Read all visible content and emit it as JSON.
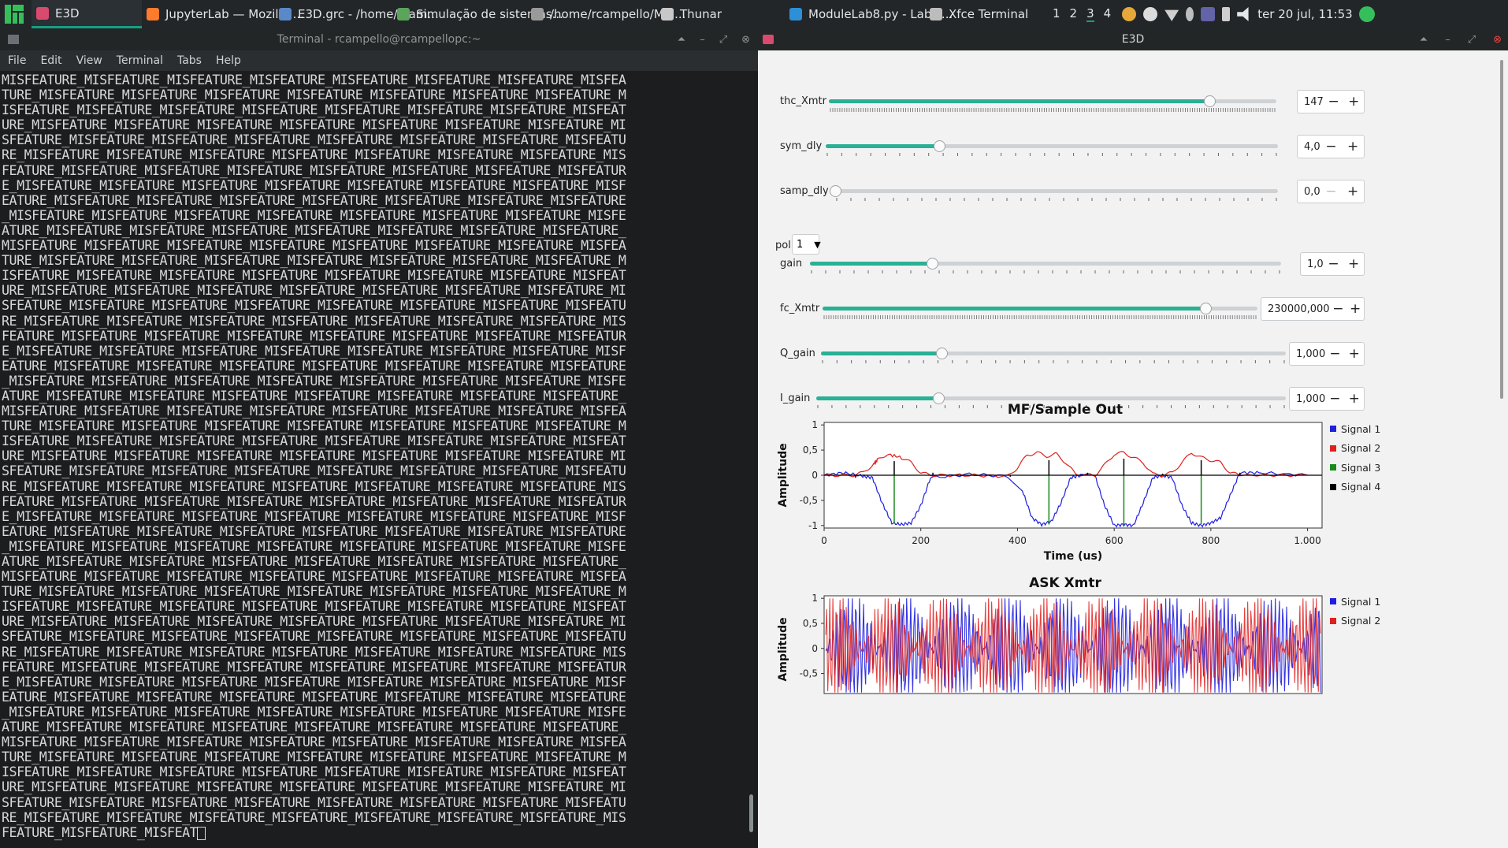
{
  "panel": {
    "tasks": [
      {
        "label": "E3D",
        "color": "#d94b6e",
        "active": true,
        "width": 140
      },
      {
        "label": "JupyterLab — Mozilla ...",
        "color": "#ff7a2b",
        "active": false,
        "width": 168
      },
      {
        "label": "E3D.grc - /home/rcam...",
        "color": "#5a88c9",
        "active": false,
        "width": 150
      },
      {
        "label": "Simulação de sistemas...",
        "color": "#5aa55a",
        "active": false,
        "width": 170
      },
      {
        "label": "/home/rcampello/Mai...",
        "color": "#9a9a9a",
        "active": false,
        "width": 165
      },
      {
        "label": "Thunar",
        "color": "#c8c8c8",
        "active": false,
        "width": 163
      },
      {
        "label": "ModuleLab8.py - Labs ...",
        "color": "#2d8fd6",
        "active": false,
        "width": 178
      },
      {
        "label": "Xfce Terminal",
        "color": "#bcbcbc",
        "active": false,
        "width": 150
      }
    ],
    "workspaces": [
      "1",
      "2",
      "3",
      "4"
    ],
    "current_workspace": "3",
    "clock": "ter 20 jul, 11:53"
  },
  "terminal": {
    "title": "Terminal - rcampello@rcampellopc:~",
    "menu": [
      "File",
      "Edit",
      "View",
      "Terminal",
      "Tabs",
      "Help"
    ],
    "lines": [
      "MISFEATURE_MISFEATURE_MISFEATURE_MISFEATURE_MISFEATURE_MISFEATURE_MISFEATURE_MISFEA",
      "TURE_MISFEATURE_MISFEATURE_MISFEATURE_MISFEATURE_MISFEATURE_MISFEATURE_MISFEATURE_M",
      "ISFEATURE_MISFEATURE_MISFEATURE_MISFEATURE_MISFEATURE_MISFEATURE_MISFEATURE_MISFEAT",
      "URE_MISFEATURE_MISFEATURE_MISFEATURE_MISFEATURE_MISFEATURE_MISFEATURE_MISFEATURE_MI",
      "SFEATURE_MISFEATURE_MISFEATURE_MISFEATURE_MISFEATURE_MISFEATURE_MISFEATURE_MISFEATU",
      "RE_MISFEATURE_MISFEATURE_MISFEATURE_MISFEATURE_MISFEATURE_MISFEATURE_MISFEATURE_MIS",
      "FEATURE_MISFEATURE_MISFEATURE_MISFEATURE_MISFEATURE_MISFEATURE_MISFEATURE_MISFEATUR",
      "E_MISFEATURE_MISFEATURE_MISFEATURE_MISFEATURE_MISFEATURE_MISFEATURE_MISFEATURE_MISF",
      "EATURE_MISFEATURE_MISFEATURE_MISFEATURE_MISFEATURE_MISFEATURE_MISFEATURE_MISFEATURE",
      "_MISFEATURE_MISFEATURE_MISFEATURE_MISFEATURE_MISFEATURE_MISFEATURE_MISFEATURE_MISFE",
      "ATURE_MISFEATURE_MISFEATURE_MISFEATURE_MISFEATURE_MISFEATURE_MISFEATURE_MISFEATURE_",
      "MISFEATURE_MISFEATURE_MISFEATURE_MISFEATURE_MISFEATURE_MISFEATURE_MISFEATURE_MISFEA",
      "TURE_MISFEATURE_MISFEATURE_MISFEATURE_MISFEATURE_MISFEATURE_MISFEATURE_MISFEATURE_M",
      "ISFEATURE_MISFEATURE_MISFEATURE_MISFEATURE_MISFEATURE_MISFEATURE_MISFEATURE_MISFEAT",
      "URE_MISFEATURE_MISFEATURE_MISFEATURE_MISFEATURE_MISFEATURE_MISFEATURE_MISFEATURE_MI",
      "SFEATURE_MISFEATURE_MISFEATURE_MISFEATURE_MISFEATURE_MISFEATURE_MISFEATURE_MISFEATU",
      "RE_MISFEATURE_MISFEATURE_MISFEATURE_MISFEATURE_MISFEATURE_MISFEATURE_MISFEATURE_MIS",
      "FEATURE_MISFEATURE_MISFEATURE_MISFEATURE_MISFEATURE_MISFEATURE_MISFEATURE_MISFEATUR",
      "E_MISFEATURE_MISFEATURE_MISFEATURE_MISFEATURE_MISFEATURE_MISFEATURE_MISFEATURE_MISF",
      "EATURE_MISFEATURE_MISFEATURE_MISFEATURE_MISFEATURE_MISFEATURE_MISFEATURE_MISFEATURE",
      "_MISFEATURE_MISFEATURE_MISFEATURE_MISFEATURE_MISFEATURE_MISFEATURE_MISFEATURE_MISFE",
      "ATURE_MISFEATURE_MISFEATURE_MISFEATURE_MISFEATURE_MISFEATURE_MISFEATURE_MISFEATURE_",
      "MISFEATURE_MISFEATURE_MISFEATURE_MISFEATURE_MISFEATURE_MISFEATURE_MISFEATURE_MISFEA",
      "TURE_MISFEATURE_MISFEATURE_MISFEATURE_MISFEATURE_MISFEATURE_MISFEATURE_MISFEATURE_M",
      "ISFEATURE_MISFEATURE_MISFEATURE_MISFEATURE_MISFEATURE_MISFEATURE_MISFEATURE_MISFEAT",
      "URE_MISFEATURE_MISFEATURE_MISFEATURE_MISFEATURE_MISFEATURE_MISFEATURE_MISFEATURE_MI",
      "SFEATURE_MISFEATURE_MISFEATURE_MISFEATURE_MISFEATURE_MISFEATURE_MISFEATURE_MISFEATU",
      "RE_MISFEATURE_MISFEATURE_MISFEATURE_MISFEATURE_MISFEATURE_MISFEATURE_MISFEATURE_MIS",
      "FEATURE_MISFEATURE_MISFEATURE_MISFEATURE_MISFEATURE_MISFEATURE_MISFEATURE_MISFEATUR",
      "E_MISFEATURE_MISFEATURE_MISFEATURE_MISFEATURE_MISFEATURE_MISFEATURE_MISFEATURE_MISF",
      "EATURE_MISFEATURE_MISFEATURE_MISFEATURE_MISFEATURE_MISFEATURE_MISFEATURE_MISFEATURE",
      "_MISFEATURE_MISFEATURE_MISFEATURE_MISFEATURE_MISFEATURE_MISFEATURE_MISFEATURE_MISFE",
      "ATURE_MISFEATURE_MISFEATURE_MISFEATURE_MISFEATURE_MISFEATURE_MISFEATURE_MISFEATURE_",
      "MISFEATURE_MISFEATURE_MISFEATURE_MISFEATURE_MISFEATURE_MISFEATURE_MISFEATURE_MISFEA",
      "TURE_MISFEATURE_MISFEATURE_MISFEATURE_MISFEATURE_MISFEATURE_MISFEATURE_MISFEATURE_M",
      "ISFEATURE_MISFEATURE_MISFEATURE_MISFEATURE_MISFEATURE_MISFEATURE_MISFEATURE_MISFEAT",
      "URE_MISFEATURE_MISFEATURE_MISFEATURE_MISFEATURE_MISFEATURE_MISFEATURE_MISFEATURE_MI",
      "SFEATURE_MISFEATURE_MISFEATURE_MISFEATURE_MISFEATURE_MISFEATURE_MISFEATURE_MISFEATU",
      "RE_MISFEATURE_MISFEATURE_MISFEATURE_MISFEATURE_MISFEATURE_MISFEATURE_MISFEATURE_MIS",
      "FEATURE_MISFEATURE_MISFEATURE_MISFEATURE_MISFEATURE_MISFEATURE_MISFEATURE_MISFEATUR",
      "E_MISFEATURE_MISFEATURE_MISFEATURE_MISFEATURE_MISFEATURE_MISFEATURE_MISFEATURE_MISF",
      "EATURE_MISFEATURE_MISFEATURE_MISFEATURE_MISFEATURE_MISFEATURE_MISFEATURE_MISFEATURE",
      "_MISFEATURE_MISFEATURE_MISFEATURE_MISFEATURE_MISFEATURE_MISFEATURE_MISFEATURE_MISFE",
      "ATURE_MISFEATURE_MISFEATURE_MISFEATURE_MISFEATURE_MISFEATURE_MISFEATURE_MISFEATURE_",
      "MISFEATURE_MISFEATURE_MISFEATURE_MISFEATURE_MISFEATURE_MISFEATURE_MISFEATURE_MISFEA",
      "TURE_MISFEATURE_MISFEATURE_MISFEATURE_MISFEATURE_MISFEATURE_MISFEATURE_MISFEATURE_M",
      "ISFEATURE_MISFEATURE_MISFEATURE_MISFEATURE_MISFEATURE_MISFEATURE_MISFEATURE_MISFEAT",
      "URE_MISFEATURE_MISFEATURE_MISFEATURE_MISFEATURE_MISFEATURE_MISFEATURE_MISFEATURE_MI",
      "SFEATURE_MISFEATURE_MISFEATURE_MISFEATURE_MISFEATURE_MISFEATURE_MISFEATURE_MISFEATU",
      "RE_MISFEATURE_MISFEATURE_MISFEATURE_MISFEATURE_MISFEATURE_MISFEATURE_MISFEATURE_MIS",
      "FEATURE_MISFEATURE_MISFEAT"
    ]
  },
  "e3d": {
    "title": "E3D",
    "controls": [
      {
        "id": "thc_Xmtr",
        "label": "thc_Xmtr",
        "value": "147",
        "level": 0.85,
        "dense_ticks": true,
        "minus_disabled": false
      },
      {
        "id": "sym_dly",
        "label": "sym_dly",
        "value": "4,0",
        "level": 0.25,
        "dense_ticks": false,
        "minus_disabled": false
      },
      {
        "id": "samp_dly",
        "label": "samp_dly",
        "value": "0,0",
        "level": 0.0,
        "dense_ticks": false,
        "minus_disabled": true
      },
      {
        "id": "gain",
        "label": "gain",
        "value": "1,0",
        "level": 0.26,
        "dense_ticks": false,
        "minus_disabled": false
      },
      {
        "id": "fc_Xmtr",
        "label": "fc_Xmtr",
        "value": "230000,000",
        "level": 0.88,
        "dense_ticks": true,
        "minus_disabled": false
      },
      {
        "id": "Q_gain",
        "label": "Q_gain",
        "value": "1,000",
        "level": 0.26,
        "dense_ticks": false,
        "minus_disabled": false
      },
      {
        "id": "I_gain",
        "label": "I_gain",
        "value": "1,000",
        "level": 0.26,
        "dense_ticks": false,
        "minus_disabled": false
      }
    ],
    "pol": {
      "label": "pol:",
      "value": "1"
    },
    "minus_label": "−",
    "plus_label": "+"
  },
  "chart_data": [
    {
      "type": "line",
      "title": "MF/Sample Out",
      "xlabel": "Time (us)",
      "ylabel": "Amplitude",
      "xlim": [
        0,
        1030
      ],
      "ylim": [
        -1.05,
        1.05
      ],
      "xticks": [
        0,
        200,
        400,
        600,
        800,
        1000
      ],
      "xtick_labels": [
        "0",
        "200",
        "400",
        "600",
        "800",
        "1.000"
      ],
      "yticks": [
        1,
        0.5,
        0,
        -0.5,
        -1
      ],
      "ytick_labels": [
        "1",
        "0,5",
        "0",
        "-0,5",
        "-1"
      ],
      "grid": false,
      "legend_position": "right",
      "series": [
        {
          "name": "Signal 1",
          "color": "#1f1fe0",
          "x": [
            0,
            40,
            80,
            100,
            120,
            140,
            160,
            180,
            200,
            220,
            300,
            380,
            410,
            430,
            450,
            470,
            490,
            510,
            530,
            560,
            580,
            600,
            620,
            640,
            660,
            680,
            700,
            720,
            740,
            760,
            780,
            800,
            820,
            840,
            860,
            900,
            1000
          ],
          "y": [
            0,
            0.05,
            -0.02,
            -0.05,
            -0.55,
            -0.95,
            -0.98,
            -0.95,
            -0.6,
            -0.05,
            0.02,
            -0.02,
            -0.3,
            -0.85,
            -0.98,
            -0.92,
            -0.55,
            -0.05,
            0,
            0,
            -0.6,
            -1.0,
            -0.98,
            -1.0,
            -0.55,
            -0.05,
            0,
            -0.05,
            -0.6,
            -0.95,
            -1.0,
            -0.95,
            -0.85,
            -0.4,
            0.05,
            0.05,
            0
          ]
        },
        {
          "name": "Signal 2",
          "color": "#e01f1f",
          "x": [
            0,
            60,
            80,
            100,
            110,
            130,
            160,
            180,
            200,
            220,
            300,
            380,
            400,
            420,
            440,
            460,
            480,
            500,
            520,
            560,
            580,
            600,
            620,
            640,
            660,
            680,
            700,
            720,
            740,
            760,
            780,
            800,
            820,
            840,
            860,
            1000
          ],
          "y": [
            0,
            0,
            0.05,
            0.2,
            0.3,
            0.42,
            0.35,
            0.25,
            0.05,
            0,
            0,
            -0.02,
            0.15,
            0.4,
            0.45,
            0.38,
            0.42,
            0.25,
            0.02,
            0,
            0.2,
            0.42,
            0.45,
            0.35,
            0.25,
            0.02,
            0,
            0.05,
            0.25,
            0.45,
            0.35,
            0.3,
            0.25,
            0.05,
            0,
            0
          ]
        },
        {
          "name": "Signal 3",
          "color": "#1a8a1a",
          "stems_x": [
            145,
            465,
            620,
            780
          ],
          "stems_y": [
            -0.95,
            -0.98,
            -1.0,
            -0.97
          ]
        },
        {
          "name": "Signal 4",
          "color": "#000000",
          "stems_x": [
            65,
            145,
            225,
            305,
            385,
            465,
            545,
            620,
            700,
            780,
            860,
            940
          ],
          "stems_y": [
            -0.05,
            0.28,
            0.05,
            0,
            -0.03,
            0.3,
            0.05,
            0.33,
            0.03,
            0.3,
            0.05,
            0
          ],
          "baseline": 0
        }
      ]
    },
    {
      "type": "line",
      "title": "ASK Xmtr",
      "xlabel": "",
      "ylabel": "Amplitude",
      "ylim": [
        -0.9,
        1.05
      ],
      "yticks": [
        1,
        0.5,
        0,
        -0.5
      ],
      "ytick_labels": [
        "1",
        "0,5",
        "0",
        "-0,5"
      ],
      "legend_position": "right",
      "series": [
        {
          "name": "Signal 1",
          "color": "#1f1fe0"
        },
        {
          "name": "Signal 2",
          "color": "#e01f1f"
        }
      ]
    }
  ]
}
